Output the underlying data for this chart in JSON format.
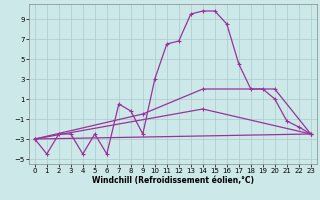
{
  "xlabel": "Windchill (Refroidissement éolien,°C)",
  "background_color": "#cce8e8",
  "grid_color": "#aacccc",
  "line_color": "#993399",
  "xlim": [
    -0.5,
    23.5
  ],
  "ylim": [
    -5.5,
    10.5
  ],
  "yticks": [
    -5,
    -3,
    -1,
    1,
    3,
    5,
    7,
    9
  ],
  "xticks": [
    0,
    1,
    2,
    3,
    4,
    5,
    6,
    7,
    8,
    9,
    10,
    11,
    12,
    13,
    14,
    15,
    16,
    17,
    18,
    19,
    20,
    21,
    22,
    23
  ],
  "series1_x": [
    0,
    1,
    2,
    3,
    4,
    5,
    6,
    7,
    8,
    9,
    10,
    11,
    12,
    13,
    14,
    15,
    16,
    17,
    18,
    19,
    20,
    21,
    22,
    23
  ],
  "series1_y": [
    -3.0,
    -4.5,
    -2.5,
    -2.5,
    -4.5,
    -2.5,
    -4.5,
    0.5,
    -0.2,
    -2.5,
    3.0,
    6.5,
    6.8,
    9.5,
    9.8,
    9.8,
    8.5,
    4.5,
    2.0,
    2.0,
    1.0,
    -1.2,
    -1.8,
    -2.5
  ],
  "series2_x": [
    0,
    9,
    14,
    20,
    23
  ],
  "series2_y": [
    -3.0,
    -0.5,
    2.0,
    2.0,
    -2.5
  ],
  "series3_x": [
    0,
    14,
    23
  ],
  "series3_y": [
    -3.0,
    0.0,
    -2.5
  ],
  "series4_x": [
    0,
    23
  ],
  "series4_y": [
    -3.0,
    -2.5
  ],
  "tick_fontsize": 5.0,
  "xlabel_fontsize": 5.5,
  "marker_size": 3.0,
  "linewidth": 0.9
}
